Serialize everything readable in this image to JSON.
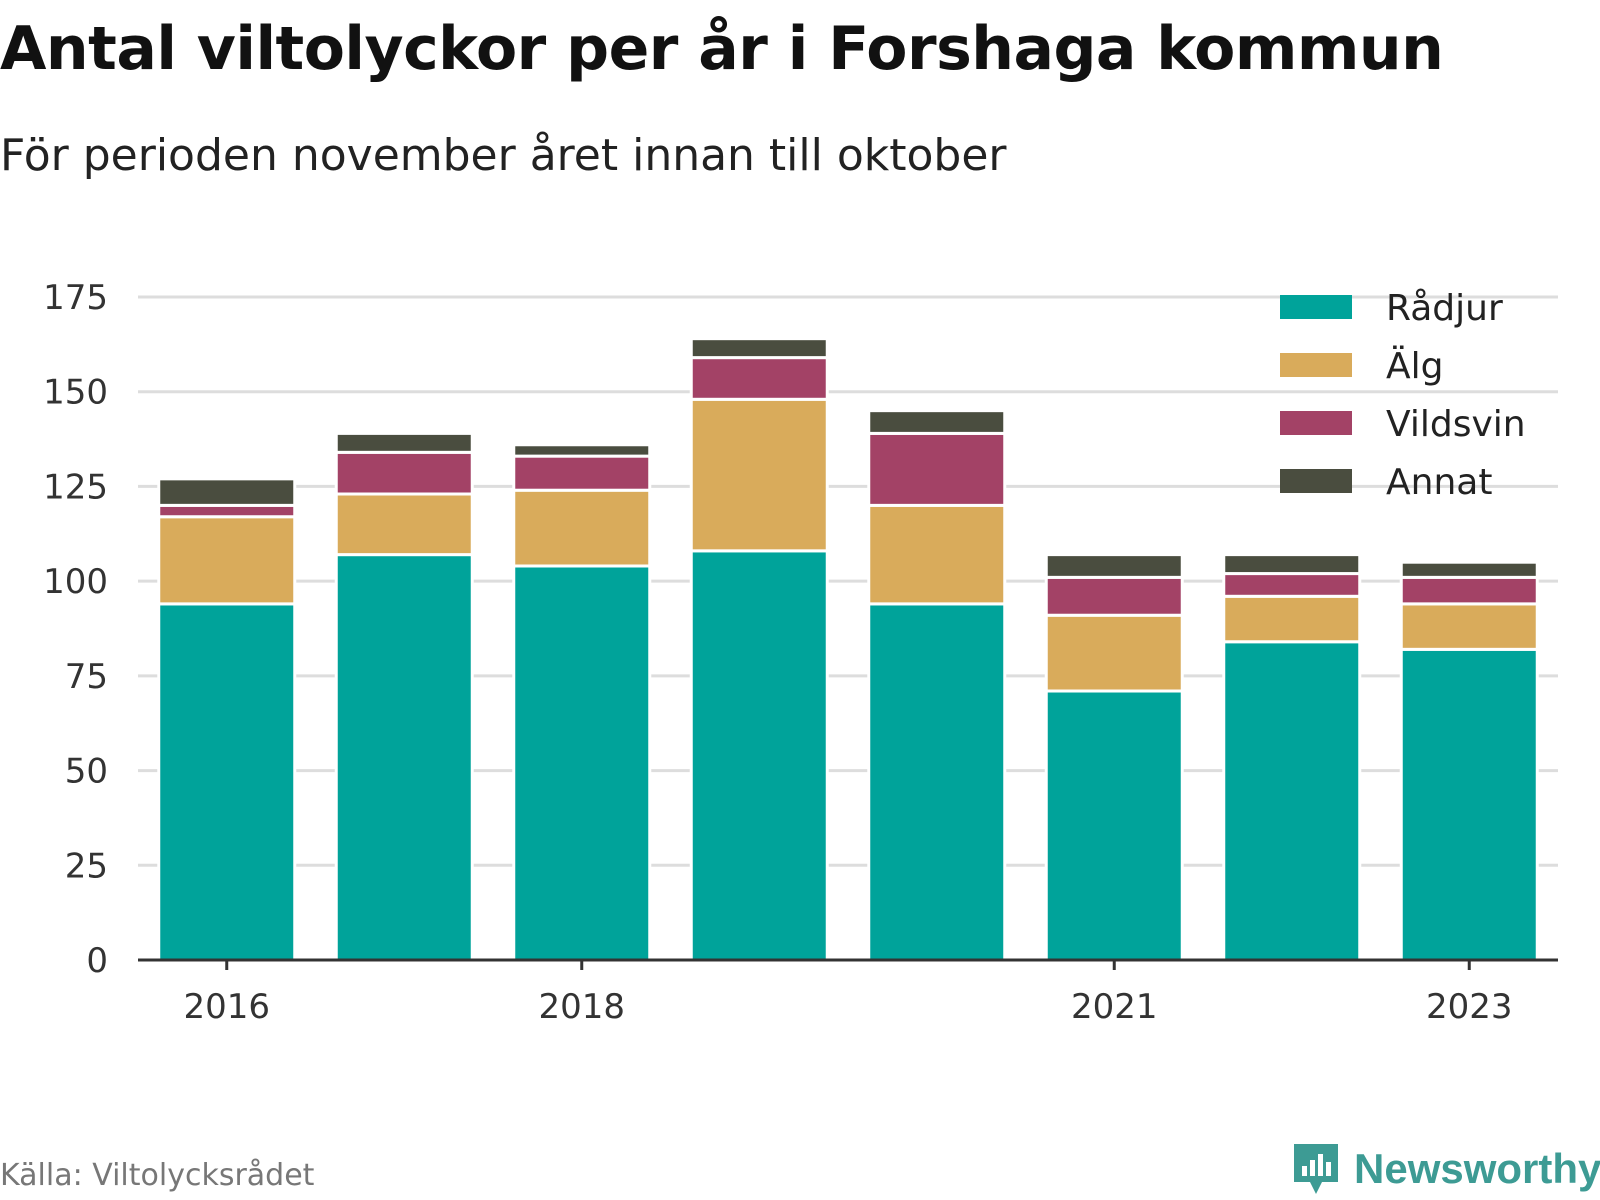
{
  "title": "Antal viltolyckor per år i Forshaga kommun",
  "subtitle": "För perioden november året innan till oktober",
  "source": "Källa: Viltolycksrådet",
  "brand": "Newsworthy",
  "colors": {
    "radjur": "#00a39a",
    "alg": "#d9ab5b",
    "vildsvin": "#a34266",
    "annat": "#4a4d3f",
    "grid": "#dddddd",
    "axis": "#333333",
    "brand": "#3d9b94"
  },
  "chart_data": {
    "type": "bar",
    "stacked": true,
    "categories": [
      "2016",
      "2017",
      "2018",
      "2019",
      "2020",
      "2021",
      "2022",
      "2023"
    ],
    "x_tick_labels": [
      "2016",
      "",
      "2018",
      "",
      "",
      "2021",
      "",
      "2023"
    ],
    "series": [
      {
        "name": "Rådjur",
        "color": "#00a39a",
        "values": [
          94,
          107,
          104,
          108,
          94,
          71,
          84,
          82
        ]
      },
      {
        "name": "Älg",
        "color": "#d9ab5b",
        "values": [
          23,
          16,
          20,
          40,
          26,
          20,
          12,
          12
        ]
      },
      {
        "name": "Vildsvin",
        "color": "#a34266",
        "values": [
          3,
          11,
          9,
          11,
          19,
          10,
          6,
          7
        ]
      },
      {
        "name": "Annat",
        "color": "#4a4d3f",
        "values": [
          7,
          5,
          3,
          5,
          6,
          6,
          5,
          4
        ]
      }
    ],
    "ylim": [
      0,
      175
    ],
    "yticks": [
      0,
      25,
      50,
      75,
      100,
      125,
      150,
      175
    ],
    "grid": true,
    "legend_position": "top-right"
  }
}
